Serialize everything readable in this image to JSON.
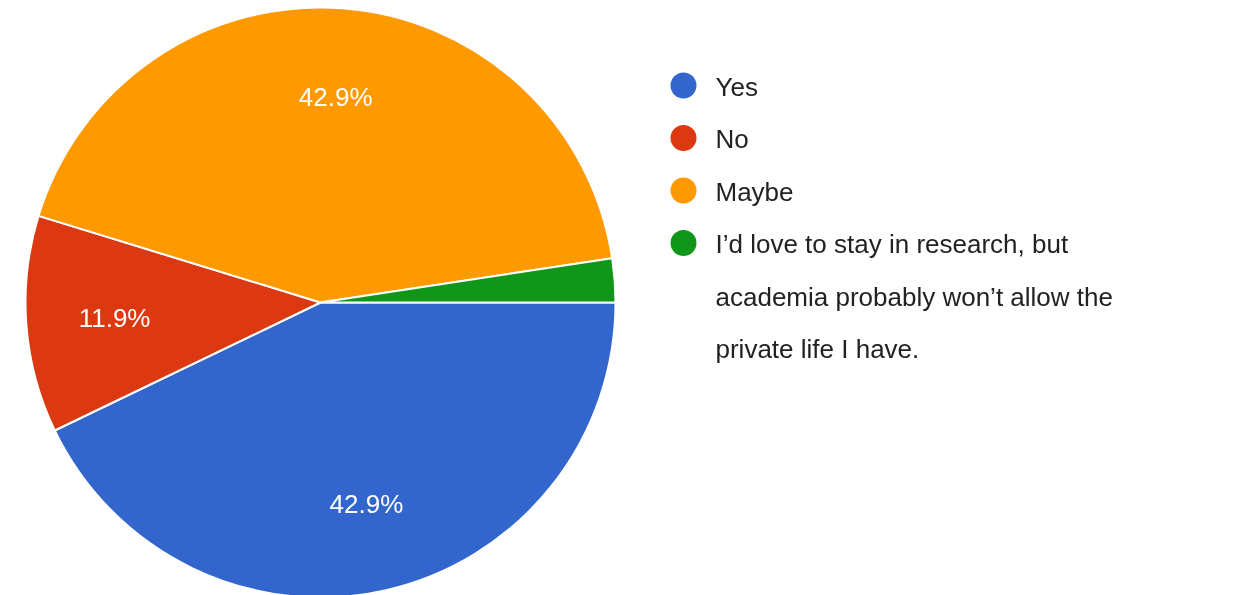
{
  "chart_data": {
    "type": "pie",
    "categories": [
      "Yes",
      "No",
      "Maybe",
      "I’d love to stay in research, but academia probably won’t allow the private life I have."
    ],
    "values": [
      42.9,
      11.9,
      42.9,
      2.4
    ],
    "colors": [
      "#3366cc",
      "#dc3912",
      "#ff9900",
      "#109618"
    ],
    "value_labels": [
      "42.9%",
      "11.9%",
      "42.9%",
      null
    ],
    "legend": "right"
  }
}
